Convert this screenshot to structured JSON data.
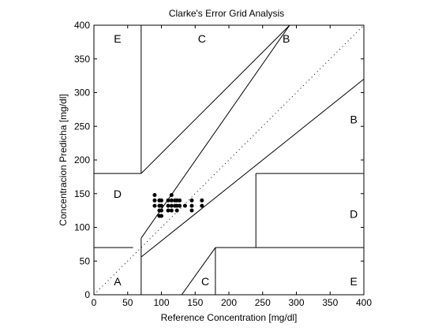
{
  "chart_data": {
    "type": "scatter",
    "title": "Clarke's Error Grid Analysis",
    "xlabel": "Reference Concentration [mg/dl]",
    "ylabel": "Concentracion Predicha [mg/dl]",
    "xlim": [
      0,
      400
    ],
    "ylim": [
      0,
      400
    ],
    "xticks": [
      0,
      50,
      100,
      150,
      200,
      250,
      300,
      350,
      400
    ],
    "yticks": [
      0,
      50,
      100,
      150,
      200,
      250,
      300,
      350,
      400
    ],
    "grid": false,
    "legend": "none",
    "colors": {
      "axes": "#000000",
      "background": "#ffffff",
      "points": "#000000"
    },
    "zone_boundaries": [
      {
        "name": "identity",
        "style": "dotted",
        "points": [
          [
            0,
            0
          ],
          [
            400,
            400
          ]
        ]
      },
      {
        "name": "A-upper",
        "style": "solid",
        "points": [
          [
            70,
            84
          ],
          [
            290,
            400
          ]
        ]
      },
      {
        "name": "A-lower",
        "style": "solid",
        "points": [
          [
            70,
            56
          ],
          [
            400,
            320
          ]
        ]
      },
      {
        "name": "E-vertical",
        "style": "solid",
        "points": [
          [
            70,
            180
          ],
          [
            70,
            400
          ]
        ]
      },
      {
        "name": "E-horizontal",
        "style": "solid",
        "points": [
          [
            0,
            180
          ],
          [
            70,
            180
          ]
        ]
      },
      {
        "name": "C-upper",
        "style": "solid",
        "points": [
          [
            70,
            180
          ],
          [
            290,
            400
          ]
        ]
      },
      {
        "name": "D-left-horizontal",
        "style": "solid",
        "points": [
          [
            0,
            70
          ],
          [
            58,
            70
          ]
        ]
      },
      {
        "name": "D-left-vertical",
        "style": "solid",
        "points": [
          [
            70,
            84
          ],
          [
            70,
            0
          ]
        ]
      },
      {
        "name": "C-lower",
        "style": "solid",
        "points": [
          [
            130,
            0
          ],
          [
            180,
            70
          ]
        ]
      },
      {
        "name": "D-right-horizontal",
        "style": "solid",
        "points": [
          [
            180,
            70
          ],
          [
            400,
            70
          ]
        ]
      },
      {
        "name": "D-right-vertical",
        "style": "solid",
        "points": [
          [
            180,
            70
          ],
          [
            180,
            0
          ]
        ]
      },
      {
        "name": "D-right-upper-vertical",
        "style": "solid",
        "points": [
          [
            240,
            70
          ],
          [
            240,
            180
          ]
        ]
      },
      {
        "name": "D-right-upper-horizontal",
        "style": "solid",
        "points": [
          [
            240,
            180
          ],
          [
            400,
            180
          ]
        ]
      }
    ],
    "zone_labels": [
      {
        "text": "E",
        "x": 35,
        "y": 380
      },
      {
        "text": "C",
        "x": 160,
        "y": 380
      },
      {
        "text": "B",
        "x": 285,
        "y": 380
      },
      {
        "text": "B",
        "x": 385,
        "y": 260
      },
      {
        "text": "D",
        "x": 35,
        "y": 150
      },
      {
        "text": "D",
        "x": 385,
        "y": 120
      },
      {
        "text": "A",
        "x": 35,
        "y": 20
      },
      {
        "text": "C",
        "x": 165,
        "y": 20
      },
      {
        "text": "E",
        "x": 385,
        "y": 20
      }
    ],
    "points": [
      {
        "x": 90,
        "y": 148
      },
      {
        "x": 90,
        "y": 140
      },
      {
        "x": 90,
        "y": 132
      },
      {
        "x": 97,
        "y": 140
      },
      {
        "x": 97,
        "y": 132
      },
      {
        "x": 97,
        "y": 125
      },
      {
        "x": 97,
        "y": 117
      },
      {
        "x": 100,
        "y": 140
      },
      {
        "x": 100,
        "y": 132
      },
      {
        "x": 100,
        "y": 125
      },
      {
        "x": 100,
        "y": 117
      },
      {
        "x": 110,
        "y": 140
      },
      {
        "x": 110,
        "y": 132
      },
      {
        "x": 110,
        "y": 125
      },
      {
        "x": 115,
        "y": 148
      },
      {
        "x": 115,
        "y": 140
      },
      {
        "x": 115,
        "y": 132
      },
      {
        "x": 115,
        "y": 125
      },
      {
        "x": 120,
        "y": 140
      },
      {
        "x": 120,
        "y": 132
      },
      {
        "x": 123,
        "y": 140
      },
      {
        "x": 123,
        "y": 132
      },
      {
        "x": 123,
        "y": 125
      },
      {
        "x": 127,
        "y": 140
      },
      {
        "x": 127,
        "y": 132
      },
      {
        "x": 135,
        "y": 132
      },
      {
        "x": 145,
        "y": 140
      },
      {
        "x": 145,
        "y": 132
      },
      {
        "x": 145,
        "y": 125
      },
      {
        "x": 160,
        "y": 140
      },
      {
        "x": 160,
        "y": 132
      }
    ]
  }
}
